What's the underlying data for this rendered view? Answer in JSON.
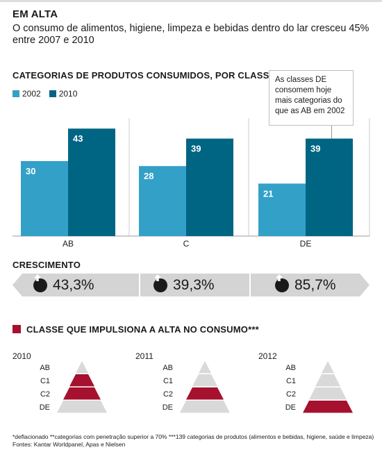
{
  "header": {
    "title": "EM ALTA",
    "subtitle": "O consumo de alimentos, higiene, limpeza e bebidas dentro do lar cresceu 45% entre 2007 e 2010"
  },
  "colors": {
    "light_blue": "#33a0c8",
    "dark_blue": "#006583",
    "crimson": "#a5112e",
    "gray": "#d9d9d9",
    "pill_gray": "#d4d4d4"
  },
  "chart_data": [
    {
      "type": "bar",
      "title": "CATEGORIAS DE PRODUTOS CONSUMIDOS, POR CLASSE",
      "categories": [
        "AB",
        "C",
        "DE"
      ],
      "series": [
        {
          "name": "2002",
          "values": [
            30,
            28,
            21
          ]
        },
        {
          "name": "2010",
          "values": [
            43,
            39,
            39
          ]
        }
      ],
      "legend": "top-left",
      "annotation": "As classes DE consomem hoje mais categorias do que as AB em 2002"
    },
    {
      "type": "table",
      "title": "CRESCIMENTO",
      "categories": [
        "AB",
        "C",
        "DE"
      ],
      "values": [
        "43,3%",
        "39,3%",
        "85,7%"
      ]
    },
    {
      "type": "table",
      "title": "CLASSE QUE IMPULSIONA A ALTA NO CONSUMO***",
      "levels": [
        "AB",
        "C1",
        "C2",
        "DE"
      ],
      "years": [
        {
          "year": "2010",
          "highlighted": [
            "C1",
            "C2"
          ]
        },
        {
          "year": "2011",
          "highlighted": [
            "C2"
          ]
        },
        {
          "year": "2012",
          "highlighted": [
            "DE"
          ]
        }
      ]
    }
  ],
  "labels": {
    "chart_title": "CATEGORIAS DE PRODUTOS CONSUMIDOS, POR CLASSE",
    "legend_2002": "2002",
    "legend_2010": "2010",
    "callout_text": "As classes DE consomem hoje mais categorias do que as AB em 2002",
    "growth_title": "CRESCIMENTO",
    "growth_values": [
      "43,3%",
      "39,3%",
      "85,7%"
    ],
    "pyramid_title": "CLASSE QUE IMPULSIONA A ALTA NO CONSUMO***",
    "years": [
      "2010",
      "2011",
      "2012"
    ],
    "levels": [
      "AB",
      "C1",
      "C2",
      "DE"
    ]
  },
  "footnote": {
    "line1": "*deflacionado   **categorias com penetração superior a 70%   ***139 categorias de produtos (alimentos e bebidas, higiene, saúde e limpeza)",
    "line2": "Fontes: Kantar Worldpanel, Apas e Nielsen"
  }
}
